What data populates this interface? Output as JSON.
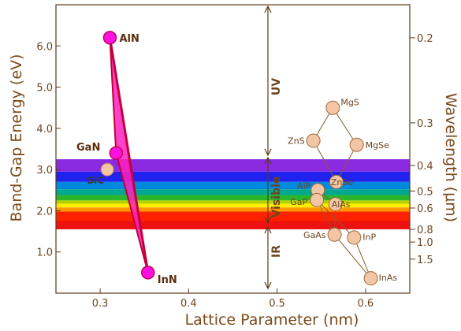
{
  "chart_data": {
    "type": "scatter",
    "xlabel": "Lattice Parameter (nm)",
    "ylabel": "Band-Gap Energy (eV)",
    "y2label": "Wavelength (μm)",
    "xlim": [
      0.25,
      0.65
    ],
    "ylim": [
      0,
      7
    ],
    "x_ticks": [
      {
        "value": 0.3,
        "label": "0.3"
      },
      {
        "value": 0.4,
        "label": "0.4"
      },
      {
        "value": 0.5,
        "label": "0.5"
      },
      {
        "value": 0.6,
        "label": "0.6"
      }
    ],
    "y_ticks": [
      {
        "value": 1,
        "label": "1.0"
      },
      {
        "value": 2,
        "label": "2.0"
      },
      {
        "value": 3,
        "label": "3.0"
      },
      {
        "value": 4,
        "label": "4.0"
      },
      {
        "value": 5,
        "label": "5.0"
      },
      {
        "value": 6,
        "label": "6.0"
      }
    ],
    "y2_ticks": [
      {
        "value": 0.2,
        "label": "0.2"
      },
      {
        "value": 0.3,
        "label": "0.3"
      },
      {
        "value": 0.4,
        "label": "0.4"
      },
      {
        "value": 0.5,
        "label": "0.5"
      },
      {
        "value": 0.6,
        "label": "0.6"
      },
      {
        "value": 0.8,
        "label": "0.8"
      },
      {
        "value": 1.0,
        "label": "1.0"
      },
      {
        "value": 1.5,
        "label": "1.5"
      }
    ],
    "spectrum_bands": [
      {
        "color": "#8a2be2",
        "from": 2.95,
        "to": 3.25
      },
      {
        "color": "#2222ee",
        "from": 2.7,
        "to": 2.95
      },
      {
        "color": "#0088dd",
        "from": 2.52,
        "to": 2.7
      },
      {
        "color": "#00a890",
        "from": 2.38,
        "to": 2.52
      },
      {
        "color": "#2ab52a",
        "from": 2.25,
        "to": 2.38
      },
      {
        "color": "#b5d200",
        "from": 2.17,
        "to": 2.25
      },
      {
        "color": "#ffee00",
        "from": 2.08,
        "to": 2.17
      },
      {
        "color": "#ff9900",
        "from": 1.98,
        "to": 2.08
      },
      {
        "color": "#ff2200",
        "from": 1.75,
        "to": 1.98
      },
      {
        "color": "#ee1111",
        "from": 1.55,
        "to": 1.75
      }
    ],
    "nitrides": [
      {
        "name": "AlN",
        "x": 0.311,
        "y": 6.2
      },
      {
        "name": "GaN",
        "x": 0.318,
        "y": 3.4
      },
      {
        "name": "InN",
        "x": 0.354,
        "y": 0.5
      }
    ],
    "sic": {
      "name": "SiC",
      "x": 0.308,
      "y": 3.0
    },
    "compounds": [
      {
        "name": "MgS",
        "x": 0.563,
        "y": 4.5
      },
      {
        "name": "ZnS",
        "x": 0.541,
        "y": 3.7
      },
      {
        "name": "MgSe",
        "x": 0.59,
        "y": 3.6
      },
      {
        "name": "ZnSe",
        "x": 0.567,
        "y": 2.7
      },
      {
        "name": "AlP",
        "x": 0.546,
        "y": 2.5
      },
      {
        "name": "GaP",
        "x": 0.545,
        "y": 2.26
      },
      {
        "name": "AlAs",
        "x": 0.566,
        "y": 2.16
      },
      {
        "name": "GaAs",
        "x": 0.565,
        "y": 1.42
      },
      {
        "name": "InP",
        "x": 0.587,
        "y": 1.35
      },
      {
        "name": "InAs",
        "x": 0.606,
        "y": 0.36
      }
    ],
    "annotations": {
      "uv": "UV",
      "visible": "Visible",
      "ir": "IR"
    }
  }
}
